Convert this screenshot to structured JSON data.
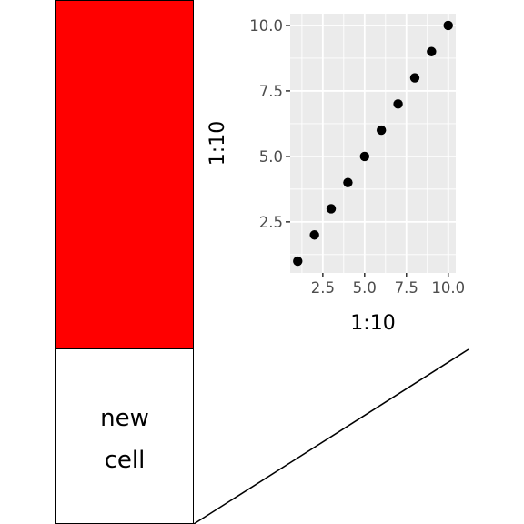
{
  "layout_cells": {
    "red_cell": {
      "fill": "#ff0000"
    },
    "text_cell": {
      "lines": [
        "new",
        "cell"
      ]
    }
  },
  "chart_data": {
    "type": "scatter",
    "x": [
      1,
      2,
      3,
      4,
      5,
      6,
      7,
      8,
      9,
      10
    ],
    "y": [
      1,
      2,
      3,
      4,
      5,
      6,
      7,
      8,
      9,
      10
    ],
    "xlabel": "1:10",
    "ylabel": "1:10",
    "xlim": [
      0.55,
      10.45
    ],
    "ylim": [
      0.55,
      10.45
    ],
    "x_ticks": [
      2.5,
      5.0,
      7.5,
      10.0
    ],
    "x_tick_labels": [
      "2.5",
      "5.0",
      "7.5",
      "10.0"
    ],
    "y_ticks": [
      2.5,
      5.0,
      7.5,
      10.0
    ],
    "y_tick_labels": [
      "2.5",
      "5.0",
      "7.5",
      "10.0"
    ],
    "minor_ticks": [
      1.25,
      3.75,
      6.25,
      8.75
    ],
    "grid": true,
    "panel_background": "#ebebeb",
    "point_color": "#000000"
  }
}
